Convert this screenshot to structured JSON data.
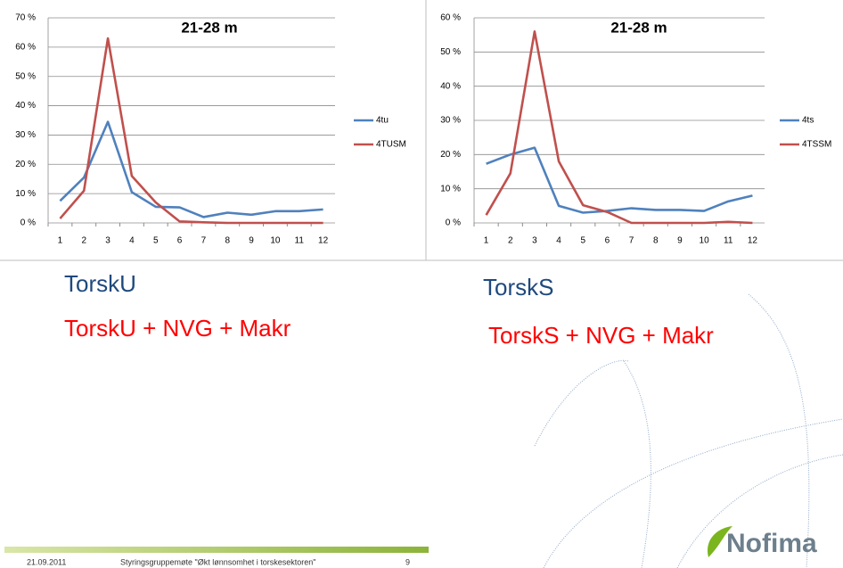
{
  "chart_data": [
    {
      "type": "line",
      "title": "21-28 m",
      "categories": [
        "1",
        "2",
        "3",
        "4",
        "5",
        "6",
        "7",
        "8",
        "9",
        "10",
        "11",
        "12"
      ],
      "ylim": [
        0,
        70
      ],
      "yticks": [
        {
          "value": 0,
          "label": "0 %"
        },
        {
          "value": 10,
          "label": "10 %"
        },
        {
          "value": 20,
          "label": "20 %"
        },
        {
          "value": 30,
          "label": "30 %"
        },
        {
          "value": 40,
          "label": "40 %"
        },
        {
          "value": 50,
          "label": "50 %"
        },
        {
          "value": 60,
          "label": "60 %"
        },
        {
          "value": 70,
          "label": "70 %"
        }
      ],
      "grid": true,
      "legend": "right",
      "series": [
        {
          "name": "4tu",
          "color": "#4f81bd",
          "values": [
            7.5,
            15.5,
            34.5,
            10.5,
            5.5,
            5.3,
            2,
            3.5,
            2.8,
            4,
            4,
            4.6
          ]
        },
        {
          "name": "4TUSM",
          "color": "#c0504d",
          "values": [
            1.5,
            11,
            63,
            16,
            7,
            0.5,
            0.2,
            0,
            0,
            0,
            0,
            0
          ]
        }
      ]
    },
    {
      "type": "line",
      "title": "21-28 m",
      "categories": [
        "1",
        "2",
        "3",
        "4",
        "5",
        "6",
        "7",
        "8",
        "9",
        "10",
        "11",
        "12"
      ],
      "ylim": [
        0,
        60
      ],
      "yticks": [
        {
          "value": 0,
          "label": "0 %"
        },
        {
          "value": 10,
          "label": "10 %"
        },
        {
          "value": 20,
          "label": "20 %"
        },
        {
          "value": 30,
          "label": "30 %"
        },
        {
          "value": 40,
          "label": "40 %"
        },
        {
          "value": 50,
          "label": "50 %"
        },
        {
          "value": 60,
          "label": "60 %"
        }
      ],
      "grid": true,
      "legend": "right",
      "series": [
        {
          "name": "4ts",
          "color": "#4f81bd",
          "values": [
            17.3,
            20,
            22,
            5,
            3,
            3.5,
            4.3,
            3.8,
            3.8,
            3.5,
            6.3,
            8
          ]
        },
        {
          "name": "4TSSM",
          "color": "#c0504d",
          "values": [
            2.3,
            14.5,
            56,
            18,
            5.2,
            3.2,
            0,
            0,
            0,
            0,
            0.3,
            0
          ]
        }
      ]
    }
  ],
  "slide": {
    "left_label": "TorskU",
    "left_sub": "TorskU + NVG + Makr",
    "right_label": "TorskS",
    "right_sub": "TorskS + NVG + Makr"
  },
  "footer": {
    "date": "21.09.2011",
    "title": "Styringsgruppemøte \"Økt lønnsomhet i torskesektoren\"",
    "page": "9"
  },
  "logo": "Nofima"
}
